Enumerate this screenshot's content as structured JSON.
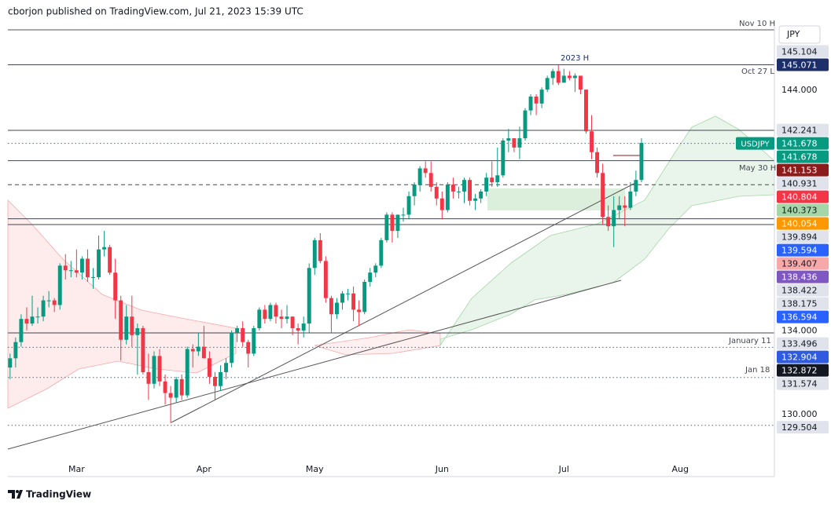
{
  "header": "cborjon published on TradingView.com, Jul 21, 2023 15:39 UTC",
  "currency": "JPY",
  "brand": "TradingView",
  "annotations": [
    "Nov 10 H",
    "2023 H",
    "Oct 27 L",
    "May 30 H",
    "January 11",
    "Jan 18"
  ],
  "chart_data": {
    "type": "candlestick",
    "up_color": "#089981",
    "down_color": "#f23645",
    "xlim": [
      -0.4,
      138
    ],
    "ylim": [
      127.36,
      146.92
    ],
    "xticks": [
      {
        "value": 12,
        "label": "Mar"
      },
      {
        "value": 35,
        "label": "Apr"
      },
      {
        "value": 55,
        "label": "May"
      },
      {
        "value": 78,
        "label": "Jun"
      },
      {
        "value": 100,
        "label": "Jul"
      },
      {
        "value": 121,
        "label": "Aug"
      }
    ],
    "ohlc": [
      [
        132.0,
        132.6,
        131.5,
        132.4
      ],
      [
        132.4,
        133.3,
        132.0,
        133.1
      ],
      [
        133.1,
        134.3,
        132.9,
        134.1
      ],
      [
        134.1,
        134.6,
        133.6,
        133.9
      ],
      [
        133.9,
        135.1,
        133.8,
        134.2
      ],
      [
        134.2,
        134.6,
        133.9,
        134.2
      ],
      [
        134.2,
        135.1,
        134.0,
        134.9
      ],
      [
        134.9,
        135.3,
        134.6,
        134.9
      ],
      [
        134.9,
        135.0,
        134.4,
        134.7
      ],
      [
        134.7,
        136.5,
        134.5,
        136.4
      ],
      [
        136.4,
        136.9,
        135.8,
        136.2
      ],
      [
        136.2,
        136.6,
        135.9,
        136.2
      ],
      [
        136.2,
        137.1,
        135.9,
        136.1
      ],
      [
        136.1,
        136.8,
        135.8,
        136.7
      ],
      [
        136.7,
        137.1,
        135.7,
        135.9
      ],
      [
        135.9,
        136.3,
        135.4,
        135.9
      ],
      [
        135.9,
        137.7,
        135.8,
        137.1
      ],
      [
        137.1,
        137.9,
        136.8,
        137.2
      ],
      [
        137.2,
        137.3,
        136.0,
        136.1
      ],
      [
        136.1,
        136.7,
        134.1,
        134.9
      ],
      [
        134.9,
        135.1,
        132.3,
        133.2
      ],
      [
        133.2,
        134.7,
        133.0,
        134.2
      ],
      [
        134.2,
        135.1,
        132.9,
        133.4
      ],
      [
        133.4,
        133.9,
        131.7,
        133.7
      ],
      [
        133.7,
        133.8,
        131.7,
        131.8
      ],
      [
        131.8,
        132.6,
        130.6,
        131.3
      ],
      [
        131.3,
        132.7,
        131.1,
        132.5
      ],
      [
        132.5,
        132.8,
        131.2,
        131.4
      ],
      [
        131.4,
        131.7,
        130.4,
        130.9
      ],
      [
        130.9,
        131.2,
        129.6,
        130.7
      ],
      [
        130.7,
        131.6,
        130.5,
        131.5
      ],
      [
        131.5,
        131.7,
        130.6,
        130.8
      ],
      [
        130.8,
        132.9,
        130.7,
        132.8
      ],
      [
        132.8,
        133.0,
        132.0,
        132.7
      ],
      [
        132.7,
        133.5,
        132.5,
        132.9
      ],
      [
        132.9,
        133.8,
        132.4,
        132.4
      ],
      [
        132.4,
        132.7,
        131.3,
        131.6
      ],
      [
        131.6,
        131.8,
        130.6,
        131.2
      ],
      [
        131.2,
        132.1,
        131.0,
        131.8
      ],
      [
        131.8,
        132.4,
        131.5,
        132.2
      ],
      [
        132.2,
        133.6,
        132.0,
        133.5
      ],
      [
        133.5,
        133.8,
        133.1,
        133.7
      ],
      [
        133.7,
        134.0,
        132.9,
        133.1
      ],
      [
        133.1,
        133.2,
        132.0,
        132.6
      ],
      [
        132.6,
        133.8,
        132.5,
        133.7
      ],
      [
        133.7,
        134.6,
        133.6,
        134.5
      ],
      [
        134.5,
        134.7,
        133.9,
        134.1
      ],
      [
        134.1,
        134.8,
        134.0,
        134.7
      ],
      [
        134.7,
        134.8,
        133.9,
        134.2
      ],
      [
        134.2,
        134.5,
        133.7,
        134.1
      ],
      [
        134.1,
        134.7,
        133.9,
        134.2
      ],
      [
        134.2,
        134.2,
        133.4,
        133.7
      ],
      [
        133.7,
        133.9,
        133.0,
        133.6
      ],
      [
        133.6,
        134.2,
        133.3,
        133.9
      ],
      [
        133.9,
        136.5,
        133.5,
        136.3
      ],
      [
        136.3,
        137.6,
        136.0,
        137.5
      ],
      [
        137.5,
        137.8,
        136.5,
        136.6
      ],
      [
        136.6,
        136.8,
        134.8,
        135.0
      ],
      [
        135.0,
        135.1,
        133.5,
        134.3
      ],
      [
        134.3,
        135.0,
        134.1,
        134.8
      ],
      [
        134.8,
        135.3,
        134.5,
        135.2
      ],
      [
        135.2,
        135.4,
        134.9,
        135.2
      ],
      [
        135.2,
        135.5,
        134.0,
        134.5
      ],
      [
        134.5,
        134.9,
        133.8,
        134.4
      ],
      [
        134.4,
        135.8,
        134.3,
        135.7
      ],
      [
        135.7,
        136.3,
        135.5,
        136.1
      ],
      [
        136.1,
        136.5,
        135.9,
        136.4
      ],
      [
        136.4,
        137.6,
        136.3,
        137.5
      ],
      [
        137.5,
        138.7,
        137.4,
        138.6
      ],
      [
        138.6,
        138.7,
        137.4,
        137.9
      ],
      [
        137.9,
        138.6,
        137.6,
        138.6
      ],
      [
        138.6,
        138.9,
        138.3,
        138.6
      ],
      [
        138.6,
        139.6,
        138.4,
        139.4
      ],
      [
        139.4,
        140.0,
        139.0,
        139.9
      ],
      [
        139.9,
        140.7,
        139.6,
        140.6
      ],
      [
        140.6,
        140.9,
        140.2,
        140.4
      ],
      [
        140.4,
        140.9,
        139.6,
        139.8
      ],
      [
        139.8,
        140.0,
        139.0,
        139.3
      ],
      [
        139.3,
        139.6,
        138.4,
        138.8
      ],
      [
        138.8,
        140.0,
        138.7,
        139.9
      ],
      [
        139.9,
        140.2,
        139.3,
        139.6
      ],
      [
        139.6,
        139.8,
        139.3,
        139.6
      ],
      [
        139.6,
        140.2,
        139.1,
        140.1
      ],
      [
        140.1,
        140.2,
        139.0,
        139.2
      ],
      [
        139.2,
        139.5,
        138.8,
        139.3
      ],
      [
        139.3,
        139.7,
        139.1,
        139.6
      ],
      [
        139.6,
        140.4,
        139.4,
        140.2
      ],
      [
        140.2,
        140.9,
        139.8,
        140.0
      ],
      [
        140.0,
        141.5,
        139.8,
        140.3
      ],
      [
        140.3,
        141.9,
        140.2,
        141.8
      ],
      [
        141.8,
        142.3,
        141.3,
        141.9
      ],
      [
        141.9,
        141.9,
        141.3,
        141.5
      ],
      [
        141.5,
        142.4,
        141.0,
        141.9
      ],
      [
        141.9,
        143.2,
        141.8,
        143.1
      ],
      [
        143.1,
        143.8,
        142.9,
        143.7
      ],
      [
        143.7,
        143.8,
        142.9,
        143.4
      ],
      [
        143.4,
        144.1,
        143.2,
        144.0
      ],
      [
        144.0,
        144.6,
        143.9,
        144.5
      ],
      [
        144.5,
        144.9,
        144.2,
        144.8
      ],
      [
        144.8,
        145.07,
        144.2,
        144.3
      ],
      [
        144.3,
        144.9,
        144.3,
        144.6
      ],
      [
        144.6,
        144.8,
        144.4,
        144.5
      ],
      [
        144.5,
        144.7,
        143.9,
        144.6
      ],
      [
        144.6,
        144.6,
        143.8,
        144.0
      ],
      [
        144.0,
        144.0,
        142.1,
        142.2
      ],
      [
        142.2,
        142.9,
        141.0,
        141.3
      ],
      [
        141.3,
        141.5,
        140.2,
        140.4
      ],
      [
        140.4,
        140.8,
        138.2,
        138.5
      ],
      [
        138.5,
        139.0,
        137.9,
        138.1
      ],
      [
        138.1,
        139.4,
        137.2,
        138.8
      ],
      [
        138.8,
        139.4,
        138.4,
        139.0
      ],
      [
        139.0,
        139.4,
        138.1,
        138.9
      ],
      [
        138.9,
        140.0,
        138.8,
        139.6
      ],
      [
        139.6,
        140.5,
        139.4,
        140.1
      ],
      [
        140.1,
        141.9,
        140.0,
        141.7
      ]
    ],
    "price_labels": [
      {
        "value": 145.104,
        "label": "145.104",
        "bg": "#e0e3eb",
        "fg": "#131722"
      },
      {
        "value": 145.071,
        "label": "145.071",
        "bg": "#1c2f6b",
        "fg": "#ffffff",
        "line": "solid"
      },
      {
        "value": 144.0,
        "label": "144.000",
        "fg": "#131722"
      },
      {
        "value": 142.241,
        "label": "142.241",
        "bg": "#e0e3eb",
        "fg": "#131722",
        "line": "solid"
      },
      {
        "value": 141.678,
        "label": "141.678",
        "name": "USDJPY",
        "bg": "#089981",
        "fg": "#ffffff",
        "line": "dotted"
      },
      {
        "value": 141.678,
        "label": "141.678",
        "bg": "#089981",
        "fg": "#ffffff"
      },
      {
        "value": 141.153,
        "label": "141.153",
        "bg": "#8e1b1b",
        "fg": "#ffffff"
      },
      {
        "value": 140.931,
        "label": "140.931",
        "bg": "#e0e3eb",
        "fg": "#131722",
        "line": "solid"
      },
      {
        "value": 140.804,
        "label": "140.804",
        "bg": "#f23645",
        "fg": "#ffffff"
      },
      {
        "value": 140.373,
        "label": "140.373",
        "bg": "#a5d6a7",
        "fg": "#131722"
      },
      {
        "value": 140.054,
        "label": "140.054",
        "bg": "#ff9800",
        "fg": "#ffffff"
      },
      {
        "value": 139.894,
        "label": "139.894",
        "bg": "#e0e3eb",
        "fg": "#131722",
        "line": "dashed"
      },
      {
        "value": 139.594,
        "label": "139.594",
        "bg": "#2962ff",
        "fg": "#ffffff"
      },
      {
        "value": 139.407,
        "label": "139.407",
        "bg": "#f7a8a8",
        "fg": "#131722"
      },
      {
        "value": 138.436,
        "label": "138.436",
        "bg": "#7e57c2",
        "fg": "#ffffff"
      },
      {
        "value": 138.422,
        "label": "138.422",
        "bg": "#e0e3eb",
        "fg": "#131722",
        "line": "solid"
      },
      {
        "value": 138.175,
        "label": "138.175",
        "bg": "#e0e3eb",
        "fg": "#131722",
        "line": "solid"
      },
      {
        "value": 136.594,
        "label": "136.594",
        "bg": "#2962ff",
        "fg": "#ffffff"
      },
      {
        "value": 134.0,
        "label": "134.000",
        "fg": "#131722"
      },
      {
        "value": 133.496,
        "label": "133.496",
        "bg": "#e0e3eb",
        "fg": "#131722",
        "line": "solid"
      },
      {
        "value": 132.904,
        "label": "132.904",
        "bg": "#2f5be0",
        "fg": "#ffffff"
      },
      {
        "value": 132.872,
        "label": "132.872",
        "bg": "#131722",
        "fg": "#ffffff",
        "line": "dotted"
      },
      {
        "value": 131.574,
        "label": "131.574",
        "bg": "#e0e3eb",
        "fg": "#131722",
        "line": "dotted"
      },
      {
        "value": 130.0,
        "label": "130.000",
        "fg": "#131722"
      },
      {
        "value": 129.504,
        "label": "129.504",
        "bg": "#e0e3eb",
        "fg": "#131722",
        "line": "dotted"
      }
    ]
  }
}
